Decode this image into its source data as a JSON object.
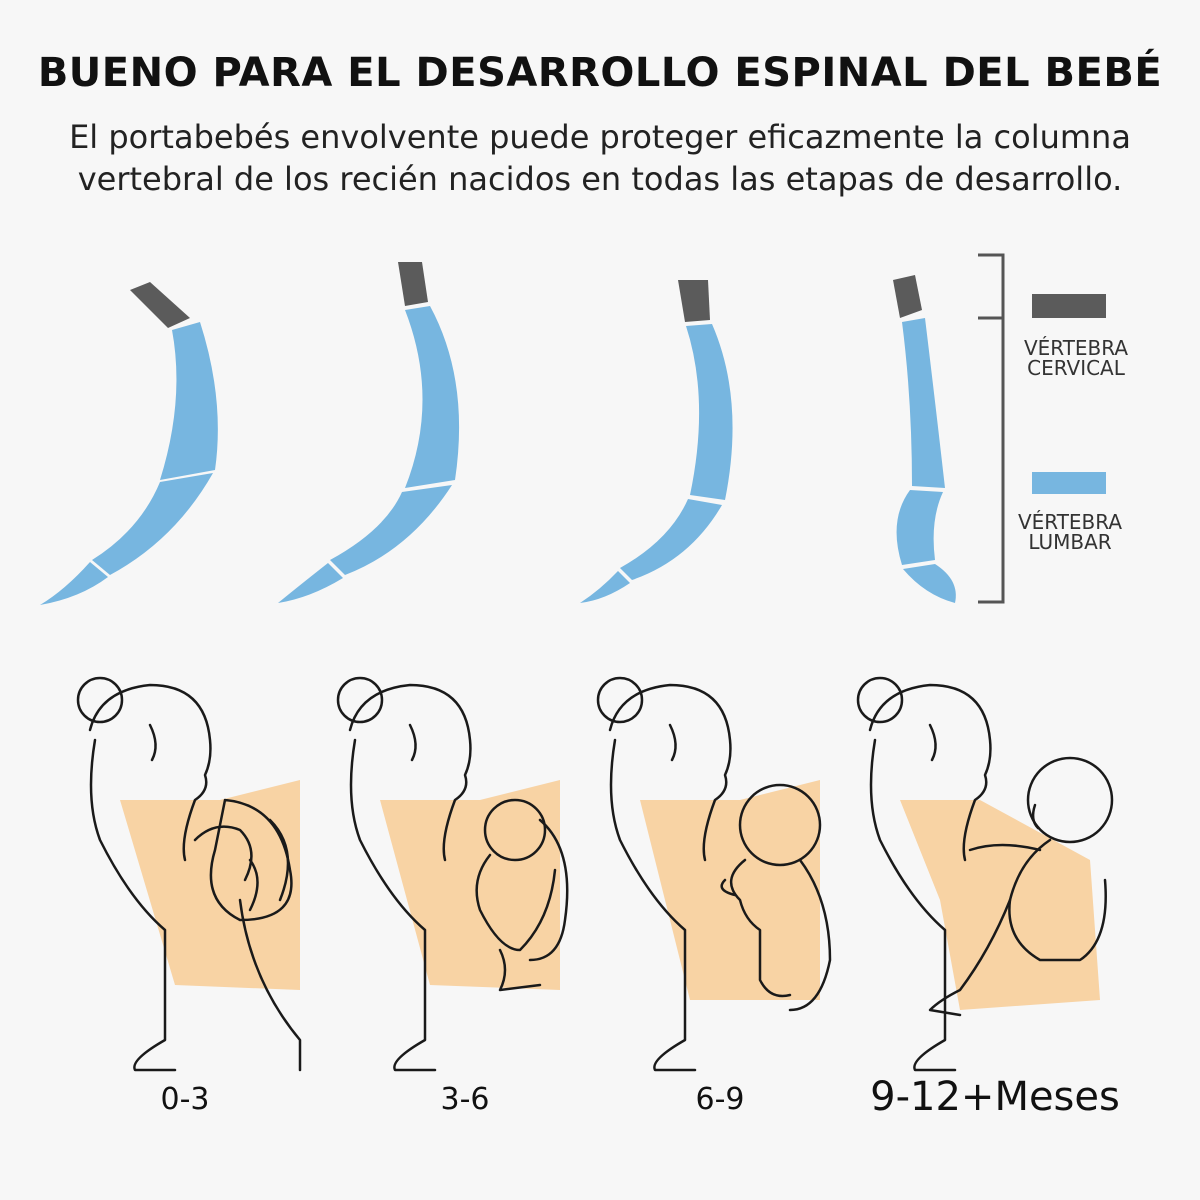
{
  "header": {
    "title": "BUENO PARA EL DESARROLLO ESPINAL DEL BEBÉ",
    "subtitle": "El portabebés envolvente puede proteger eficazmente la columna vertebral de los recién nacidos en todas las etapas de desarrollo."
  },
  "legend": {
    "cervical_label": "VÉRTEBRA CERVICAL",
    "lumbar_label": "VÉRTEBRA LUMBAR"
  },
  "colors": {
    "cervical": "#5b5b5b",
    "lumbar": "#77b6e0",
    "carrier": "#f7c98e",
    "outline": "#1a1a1a",
    "background": "#f7f7f7"
  },
  "stages": [
    {
      "label": "0-3"
    },
    {
      "label": "3-6"
    },
    {
      "label": "6-9"
    },
    {
      "label": "9-12+Meses"
    }
  ]
}
